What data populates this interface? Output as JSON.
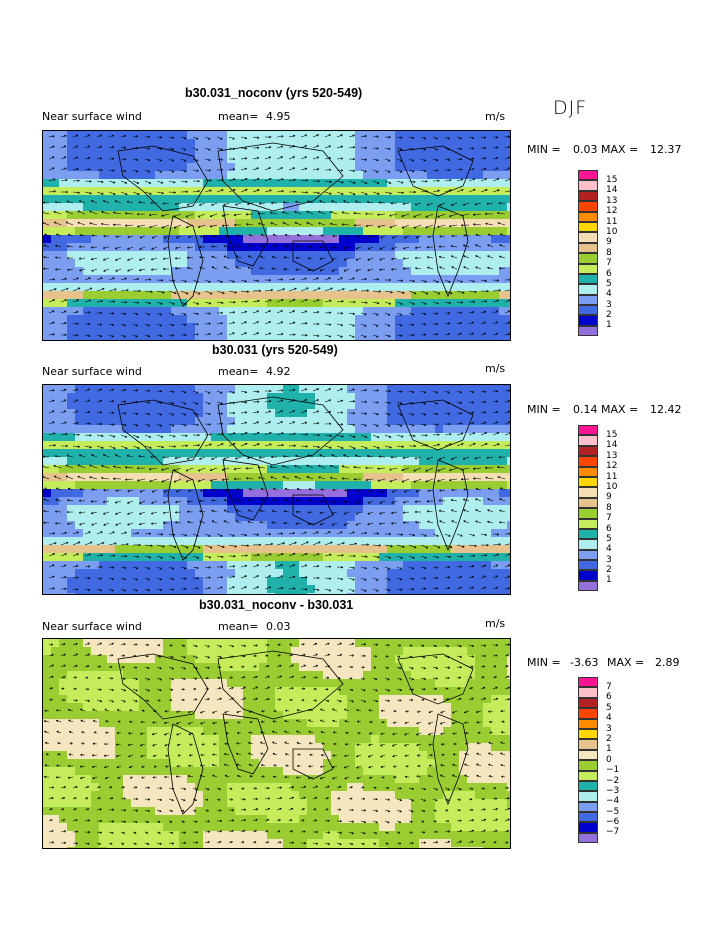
{
  "season": "DJF",
  "panels": [
    {
      "title": "b30.031_noconv (yrs 520-549)",
      "field_label": "Near surface wind",
      "mean_label": "mean=",
      "mean_value": "4.95",
      "units": "m/s",
      "min_label": "MIN =",
      "min_value": "0.03",
      "max_label": "MAX =",
      "max_value": "12.37",
      "levels": [
        "15",
        "14",
        "13",
        "12",
        "11",
        "10",
        "9",
        "8",
        "7",
        "6",
        "5",
        "4",
        "3",
        "2",
        "1"
      ],
      "colors": [
        "#ff1493",
        "#ffc0cb",
        "#b22222",
        "#ff4500",
        "#ff8c00",
        "#ffd700",
        "#f5deb3",
        "#e6c28c",
        "#9acd32",
        "#c5ec5a",
        "#20b2aa",
        "#afeeee",
        "#7b9ef0",
        "#4169e1",
        "#0000cd",
        "#9370db"
      ]
    },
    {
      "title": "b30.031 (yrs 520-549)",
      "field_label": "Near surface wind",
      "mean_label": "mean=",
      "mean_value": "4.92",
      "units": "m/s",
      "min_label": "MIN =",
      "min_value": "0.14",
      "max_label": "MAX =",
      "max_value": "12.42",
      "levels": [
        "15",
        "14",
        "13",
        "12",
        "11",
        "10",
        "9",
        "8",
        "7",
        "6",
        "5",
        "4",
        "3",
        "2",
        "1"
      ],
      "colors": [
        "#ff1493",
        "#ffc0cb",
        "#b22222",
        "#ff4500",
        "#ff8c00",
        "#ffd700",
        "#f5deb3",
        "#e6c28c",
        "#9acd32",
        "#c5ec5a",
        "#20b2aa",
        "#afeeee",
        "#7b9ef0",
        "#4169e1",
        "#0000cd",
        "#9370db"
      ]
    },
    {
      "title": "b30.031_noconv - b30.031",
      "field_label": "Near surface wind",
      "mean_label": "mean=",
      "mean_value": "0.03",
      "units": "m/s",
      "min_label": "MIN =",
      "min_value": "-3.63",
      "max_label": "MAX =",
      "max_value": "2.89",
      "levels": [
        "7",
        "6",
        "5",
        "4",
        "3",
        "2",
        "1",
        "0",
        "−1",
        "−2",
        "−3",
        "−4",
        "−5",
        "−6",
        "−7"
      ],
      "colors": [
        "#ff1493",
        "#ffc0cb",
        "#b22222",
        "#ff4500",
        "#ff8c00",
        "#ffd700",
        "#e6c28c",
        "#f5e6c0",
        "#9acd32",
        "#c5ec5a",
        "#20b2aa",
        "#afeeee",
        "#7b9ef0",
        "#4169e1",
        "#0000cd",
        "#9370db"
      ]
    }
  ]
}
